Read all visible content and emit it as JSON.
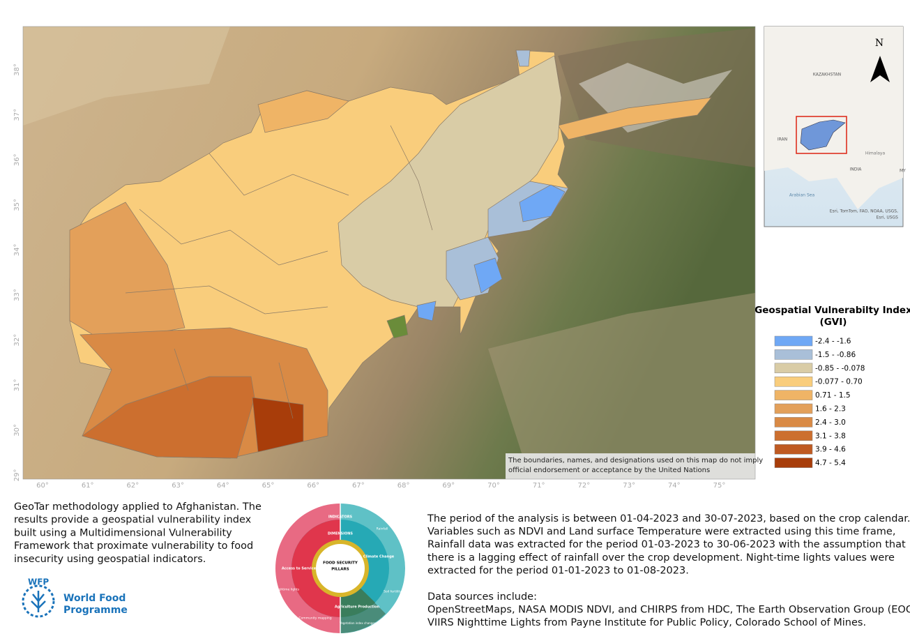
{
  "map": {
    "lat_labels": [
      "38°",
      "37°",
      "36°",
      "35°",
      "34°",
      "33°",
      "32°",
      "31°",
      "30°",
      "29°"
    ],
    "lon_labels": [
      "60°",
      "61°",
      "62°",
      "63°",
      "64°",
      "65°",
      "66°",
      "67°",
      "68°",
      "69°",
      "70°",
      "71°",
      "72°",
      "73°",
      "74°",
      "75°"
    ],
    "disclaimer": [
      "The boundaries, names, and designations used on this map do not imply",
      "official endorsement or acceptance by the United Nations"
    ]
  },
  "inset": {
    "north": "N",
    "labels": [
      "KAZAKHSTAN",
      "IRAN",
      "INDIA",
      "Himalaya",
      "Arabian Sea",
      "MY"
    ],
    "credits": [
      "Esri, TomTom, FAO, NOAA, USGS,",
      "Esri, USGS"
    ]
  },
  "legend": {
    "title": [
      "Geospatial Vulnerabilty Index",
      "(GVI)"
    ],
    "items": [
      {
        "label": "-2.4 - -1.6",
        "color": "#6fa8f5"
      },
      {
        "label": "-1.5 - -0.86",
        "color": "#a9bfd8"
      },
      {
        "label": "-0.85 - -0.078",
        "color": "#d9cca6"
      },
      {
        "label": "-0.077 - 0.70",
        "color": "#f9cd7c"
      },
      {
        "label": "0.71 - 1.5",
        "color": "#efb466"
      },
      {
        "label": "1.6 - 2.3",
        "color": "#e3a05a"
      },
      {
        "label": "2.4 - 3.0",
        "color": "#d98a45"
      },
      {
        "label": "3.1 - 3.8",
        "color": "#cc6f2f"
      },
      {
        "label": "3.9 - 4.6",
        "color": "#bf5a22"
      },
      {
        "label": "4.7 - 5.4",
        "color": "#a83d0a"
      }
    ]
  },
  "intro": [
    "GeoTar methodology applied to Afghanistan. The",
    "results  provide a geospatial vulnerability index",
    "built using a Multidimensional Vulnerability",
    "Framework that proximate vulnerability to food",
    "insecurity using geospatial indicators."
  ],
  "logo": {
    "short": "WFP",
    "name": [
      "World Food",
      "Programme"
    ]
  },
  "framework": {
    "center": [
      "FOOD SECURITY",
      "PILLARS"
    ],
    "ring_labels": [
      "INDICATORS",
      "DIMENSIONS"
    ],
    "pillars": [
      "Access to Services",
      "Climate Change",
      "Agriculture Production"
    ],
    "indicators": [
      "Rainfall",
      "Soil fertility",
      "Vegetation index changes (NDVI)",
      "Community mapping",
      "Nightime lights"
    ]
  },
  "analysis": [
    "The period of the analysis is between 01-04-2023 and 30-07-2023, based on the crop calendar.",
    "Variables such as NDVI and Land surface Temperature were extracted using this time frame,",
    "Rainfall data was extracted for the period 01-03-2023 to 30-06-2023 with the assumption that",
    "there is a lagging effect of rainfall over the crop development. Night-time lights values were",
    "extracted for the period 01-01-2023 to 01-08-2023."
  ],
  "sources": [
    "Data sources include:",
    "OpenStreetMaps, NASA MODIS NDVI, and CHIRPS from HDC, The Earth Observation Group (EOG),",
    "VIIRS Nighttime Lights from Payne Institute for Public Policy, Colorado School of Mines."
  ]
}
